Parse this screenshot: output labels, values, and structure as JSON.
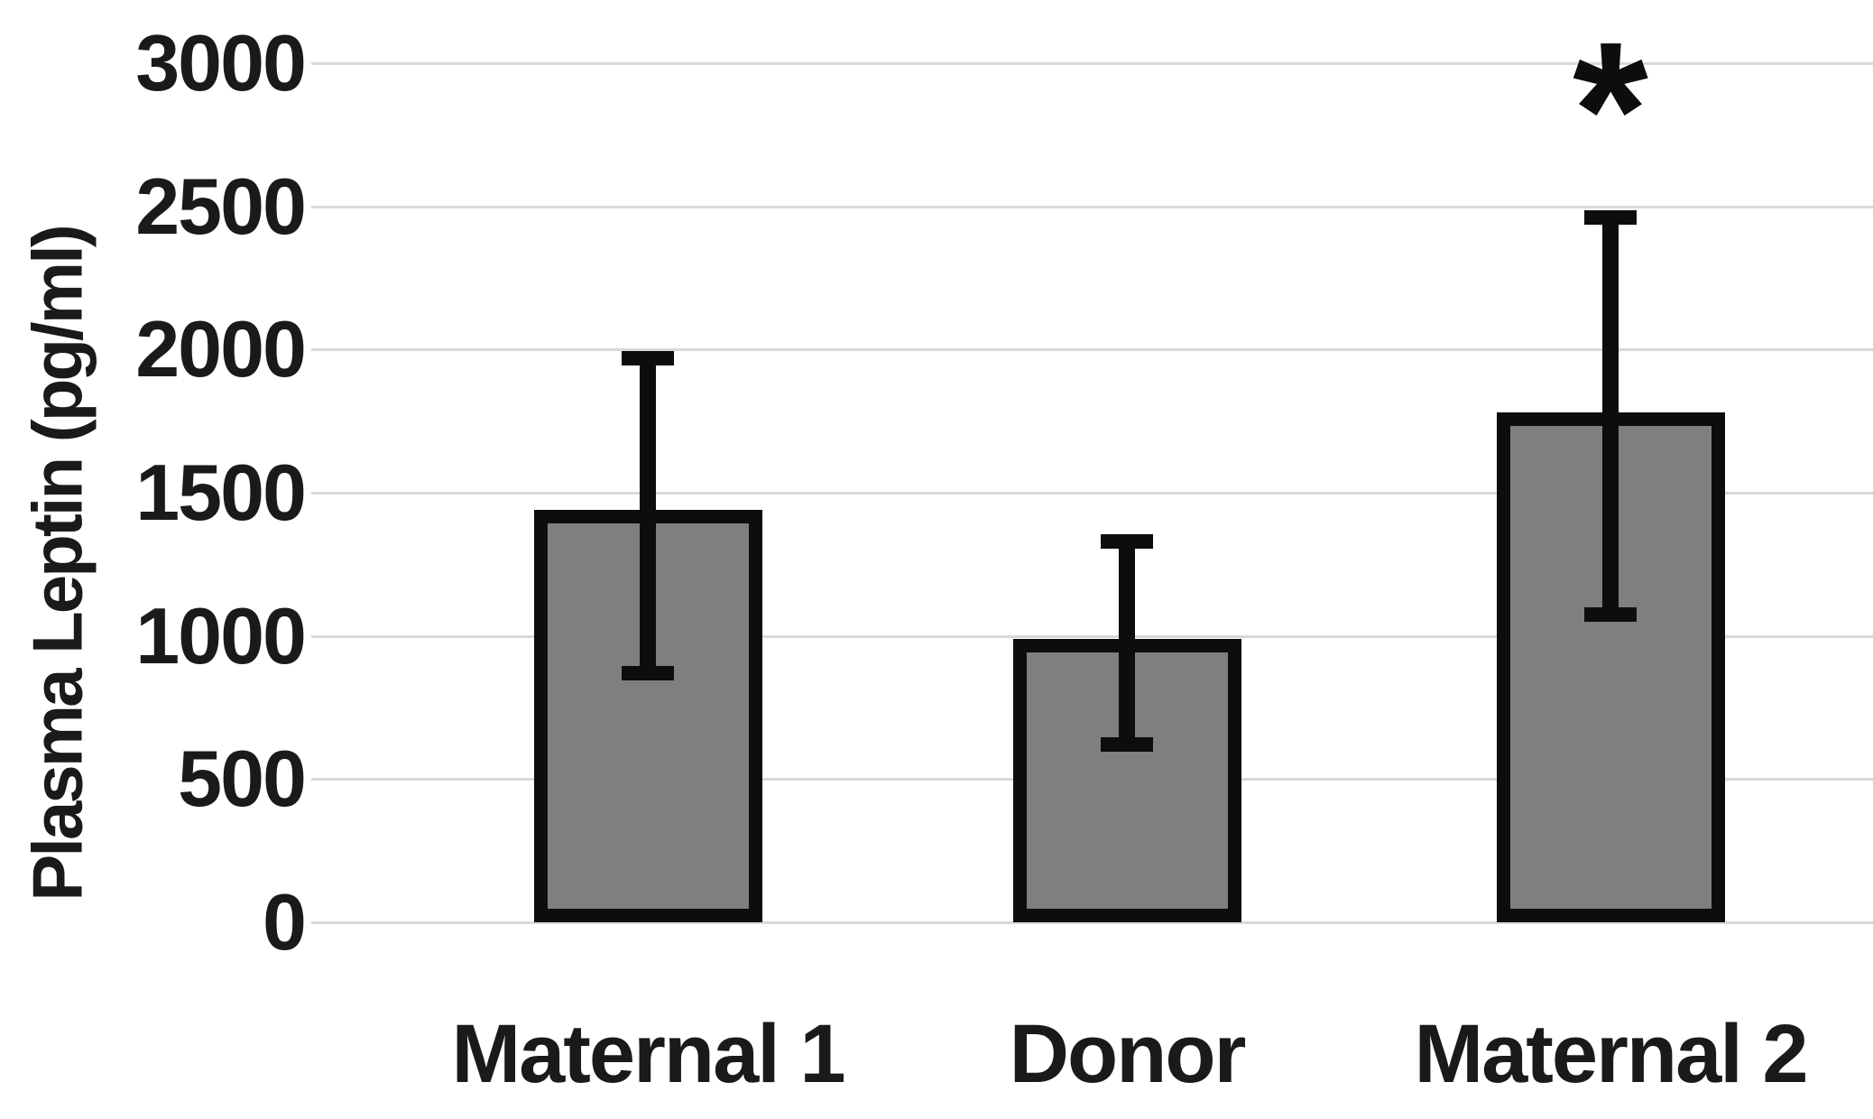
{
  "chart_data": {
    "type": "bar",
    "title": "",
    "ylabel": "Plasma Leptin (pg/ml)",
    "xlabel": "",
    "categories": [
      "Maternal 1",
      "Donor",
      "Maternal 2"
    ],
    "values": [
      1440,
      990,
      1780
    ],
    "error_bars": {
      "upper": [
        1970,
        1330,
        2460
      ],
      "lower": [
        870,
        620,
        1075
      ]
    },
    "annotations": [
      {
        "text": "*",
        "category_index": 2
      }
    ],
    "yticks": [
      0,
      500,
      1000,
      1500,
      2000,
      2500,
      3000
    ],
    "ylim": [
      0,
      3000
    ],
    "grid": "horizontal",
    "legend": "none",
    "colors": {
      "bar_fill": "#7f7f7f",
      "bar_border": "#0d0d0d",
      "error_bar": "#0d0d0d",
      "gridline": "#d9d9d9",
      "text": "#1a1a1a",
      "background": "#ffffff"
    }
  }
}
